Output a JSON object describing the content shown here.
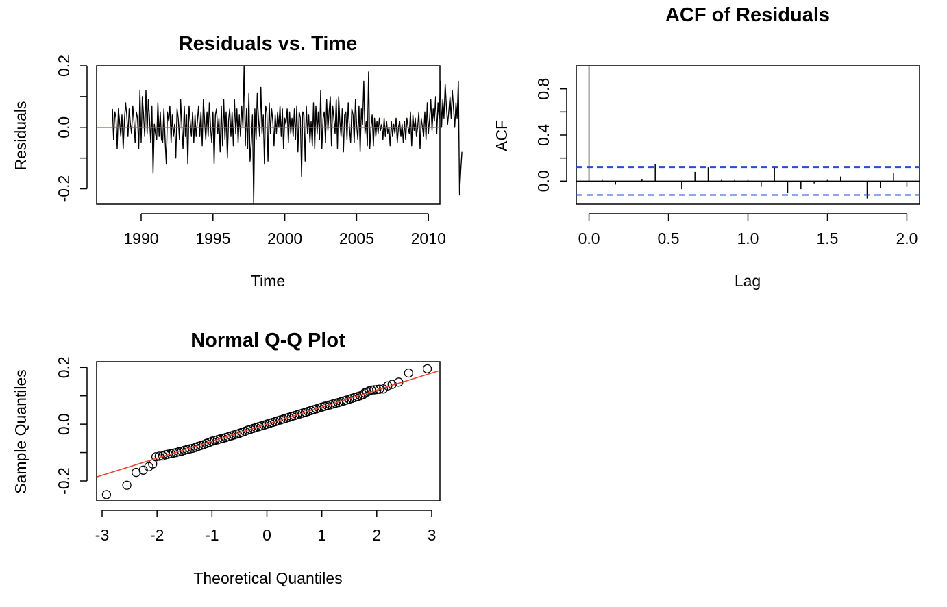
{
  "chart_data": [
    {
      "type": "line",
      "title": "Residuals vs. Time",
      "xlabel": "Time",
      "ylabel": "Residuals",
      "xlim": [
        1986.9,
        2010.8
      ],
      "ylim": [
        -0.25,
        0.2
      ],
      "xticks": [
        {
          "value": 1990,
          "label": "1990"
        },
        {
          "value": 1995,
          "label": "1995"
        },
        {
          "value": 2000,
          "label": "2000"
        },
        {
          "value": 2005,
          "label": "2005"
        },
        {
          "value": 2010,
          "label": "2010"
        }
      ],
      "yticks": [
        {
          "value": -0.2,
          "label": "-0.2"
        },
        {
          "value": -0.1,
          "label": ""
        },
        {
          "value": 0.0,
          "label": "0.0"
        },
        {
          "value": 0.1,
          "label": ""
        },
        {
          "value": 0.2,
          "label": "0.2"
        }
      ],
      "reference_line": {
        "y": 0,
        "color": "#e8432d"
      },
      "line_color": "#000000",
      "series": [
        {
          "x_start": 1988.0,
          "x_step": 0.08333,
          "values": [
            0.06,
            -0.04,
            0.05,
            0.03,
            -0.07,
            0.06,
            0.02,
            -0.03,
            0.04,
            -0.07,
            0.02,
            0.08,
            0.04,
            -0.03,
            0.06,
            0.01,
            -0.02,
            0.07,
            0.02,
            -0.05,
            0.05,
            0.03,
            -0.07,
            0.12,
            -0.05,
            0.1,
            0.04,
            -0.03,
            0.12,
            -0.02,
            0.09,
            0.03,
            -0.05,
            0.07,
            -0.15,
            0.01,
            -0.02,
            -0.04,
            0.08,
            -0.03,
            0.05,
            -0.04,
            -0.05,
            0.06,
            -0.04,
            -0.12,
            0.05,
            0.02,
            0.07,
            -0.05,
            0.04,
            -0.03,
            0.01,
            -0.1,
            0.06,
            0.03,
            -0.04,
            0.09,
            0.0,
            -0.07,
            0.07,
            -0.03,
            0.04,
            -0.12,
            0.07,
            0.02,
            -0.03,
            0.05,
            -0.05,
            0.04,
            -0.03,
            0.02,
            0.07,
            -0.03,
            0.05,
            -0.06,
            0.09,
            0.02,
            -0.04,
            0.05,
            -0.03,
            0.08,
            0.0,
            -0.05,
            0.05,
            -0.12,
            0.04,
            0.06,
            -0.02,
            0.03,
            -0.08,
            0.07,
            -0.06,
            0.09,
            -0.04,
            0.05,
            -0.1,
            0.02,
            0.06,
            -0.03,
            0.05,
            -0.06,
            0.09,
            -0.02,
            0.06,
            -0.05,
            0.04,
            -0.03,
            0.07,
            0.0,
            0.2,
            -0.06,
            0.06,
            -0.07,
            0.11,
            -0.11,
            -0.05,
            0.04,
            -0.25,
            0.06,
            -0.04,
            0.11,
            0.03,
            -0.03,
            0.13,
            -0.02,
            0.04,
            -0.12,
            0.07,
            0.05,
            -0.11,
            0.08,
            -0.02,
            0.06,
            0.02,
            -0.06,
            0.04,
            -0.02,
            0.05,
            0.0,
            0.07,
            -0.03,
            0.06,
            -0.07,
            0.03,
            0.01,
            0.06,
            -0.05,
            0.05,
            -0.02,
            0.03,
            -0.03,
            0.06,
            -0.04,
            0.07,
            -0.08,
            0.05,
            0.03,
            -0.16,
            0.05,
            0.04,
            -0.11,
            0.07,
            -0.02,
            0.04,
            -0.05,
            0.02,
            -0.06,
            0.08,
            -0.07,
            0.07,
            -0.02,
            0.05,
            -0.04,
            0.12,
            -0.07,
            0.03,
            0.05,
            -0.05,
            0.09,
            -0.01,
            0.05,
            0.1,
            -0.06,
            0.07,
            0.03,
            -0.02,
            0.09,
            -0.07,
            0.1,
            0.02,
            -0.03,
            0.06,
            -0.08,
            0.04,
            0.05,
            -0.04,
            0.08,
            0.0,
            -0.05,
            0.06,
            0.04,
            -0.05,
            0.09,
            0.01,
            -0.04,
            0.07,
            -0.08,
            0.06,
            0.01,
            0.15,
            -0.02,
            0.02,
            -0.06,
            0.18,
            -0.07,
            0.0,
            0.04,
            -0.06,
            0.03,
            -0.03,
            0.02,
            -0.02,
            0.03,
            -0.01,
            0.01,
            -0.04,
            0.03,
            -0.03,
            0.02,
            -0.02,
            0.0,
            -0.06,
            0.02,
            -0.03,
            0.01,
            -0.02,
            0.03,
            -0.05,
            0.0,
            0.02,
            -0.03,
            0.01,
            -0.05,
            0.02,
            -0.04,
            0.03,
            0.0,
            -0.02,
            0.05,
            -0.06,
            0.04,
            -0.01,
            0.03,
            -0.03,
            0.0,
            0.05,
            -0.07,
            0.03,
            0.0,
            -0.03,
            0.05,
            -0.04,
            0.08,
            -0.02,
            0.03,
            0.09,
            -0.01,
            0.06,
            0.02,
            0.1,
            -0.02,
            0.08,
            0.03,
            0.15,
            0.0,
            0.09,
            0.03,
            0.14,
            0.07,
            0.01,
            0.05,
            0.1,
            0.03,
            0.12,
            0.06,
            0.0,
            0.08,
            0.03,
            0.15,
            -0.22,
            -0.14,
            -0.08
          ]
        }
      ]
    },
    {
      "type": "bar",
      "title": "ACF of Residuals",
      "xlabel": "Lag",
      "ylabel": "ACF",
      "xlim": [
        -0.08,
        2.08
      ],
      "ylim": [
        -0.2,
        1.0
      ],
      "xticks": [
        {
          "value": 0.0,
          "label": "0.0"
        },
        {
          "value": 0.5,
          "label": "0.5"
        },
        {
          "value": 1.0,
          "label": "1.0"
        },
        {
          "value": 1.5,
          "label": "1.5"
        },
        {
          "value": 2.0,
          "label": "2.0"
        }
      ],
      "yticks": [
        {
          "value": 0.0,
          "label": "0.0"
        },
        {
          "value": 0.2,
          "label": ""
        },
        {
          "value": 0.4,
          "label": "0.4"
        },
        {
          "value": 0.6,
          "label": ""
        },
        {
          "value": 0.8,
          "label": "0.8"
        }
      ],
      "confidence_bound": 0.12,
      "bound_color": "#1f4fd8",
      "lags": [
        0.0,
        0.0833,
        0.1667,
        0.25,
        0.3333,
        0.4167,
        0.5,
        0.5833,
        0.6667,
        0.75,
        0.8333,
        0.9167,
        1.0,
        1.0833,
        1.1667,
        1.25,
        1.3333,
        1.4167,
        1.5,
        1.5833,
        1.6667,
        1.75,
        1.8333,
        1.9167,
        2.0
      ],
      "values": [
        1.0,
        0.01,
        -0.03,
        -0.01,
        0.02,
        0.15,
        -0.01,
        -0.07,
        0.08,
        0.12,
        0.01,
        0.01,
        0.01,
        -0.05,
        0.13,
        -0.1,
        -0.07,
        -0.02,
        0.01,
        0.04,
        -0.01,
        -0.15,
        -0.06,
        0.07,
        -0.05
      ]
    },
    {
      "type": "scatter",
      "title": "Normal Q-Q Plot",
      "xlabel": "Theoretical Quantiles",
      "ylabel": "Sample Quantiles",
      "xlim": [
        -3.1,
        3.15
      ],
      "ylim": [
        -0.27,
        0.22
      ],
      "xticks": [
        {
          "value": -3,
          "label": "-3"
        },
        {
          "value": -2,
          "label": "-2"
        },
        {
          "value": -1,
          "label": "-1"
        },
        {
          "value": 0,
          "label": "0"
        },
        {
          "value": 1,
          "label": "1"
        },
        {
          "value": 2,
          "label": "2"
        },
        {
          "value": 3,
          "label": "3"
        }
      ],
      "yticks": [
        {
          "value": -0.2,
          "label": "-0.2"
        },
        {
          "value": -0.1,
          "label": ""
        },
        {
          "value": 0.0,
          "label": "0.0"
        },
        {
          "value": 0.1,
          "label": ""
        },
        {
          "value": 0.2,
          "label": "0.2"
        }
      ],
      "reference_line": {
        "intercept": 0.0,
        "slope": 0.06,
        "color": "#e8432d"
      },
      "points": [
        [
          -2.92,
          -0.248
        ],
        [
          -2.55,
          -0.215
        ],
        [
          -2.38,
          -0.17
        ],
        [
          -2.25,
          -0.162
        ],
        [
          -2.15,
          -0.15
        ],
        [
          -2.08,
          -0.14
        ],
        [
          -2.02,
          -0.115
        ],
        [
          -1.96,
          -0.113
        ],
        [
          -1.9,
          -0.112
        ],
        [
          -1.85,
          -0.108
        ],
        [
          -1.8,
          -0.106
        ],
        [
          -1.75,
          -0.104
        ],
        [
          -1.7,
          -0.102
        ],
        [
          -1.65,
          -0.1
        ],
        [
          -1.6,
          -0.097
        ],
        [
          -1.55,
          -0.095
        ],
        [
          -1.5,
          -0.092
        ],
        [
          -1.45,
          -0.089
        ],
        [
          -1.4,
          -0.087
        ],
        [
          -1.35,
          -0.085
        ],
        [
          -1.3,
          -0.082
        ],
        [
          -1.25,
          -0.078
        ],
        [
          -1.2,
          -0.075
        ],
        [
          -1.15,
          -0.072
        ],
        [
          -1.1,
          -0.068
        ],
        [
          -1.05,
          -0.064
        ],
        [
          -1.0,
          -0.06
        ],
        [
          -0.95,
          -0.057
        ],
        [
          -0.9,
          -0.055
        ],
        [
          -0.85,
          -0.052
        ],
        [
          -0.8,
          -0.05
        ],
        [
          -0.75,
          -0.047
        ],
        [
          -0.7,
          -0.044
        ],
        [
          -0.65,
          -0.041
        ],
        [
          -0.6,
          -0.038
        ],
        [
          -0.55,
          -0.035
        ],
        [
          -0.5,
          -0.032
        ],
        [
          -0.45,
          -0.028
        ],
        [
          -0.4,
          -0.025
        ],
        [
          -0.35,
          -0.021
        ],
        [
          -0.3,
          -0.018
        ],
        [
          -0.25,
          -0.015
        ],
        [
          -0.2,
          -0.012
        ],
        [
          -0.15,
          -0.009
        ],
        [
          -0.1,
          -0.006
        ],
        [
          -0.05,
          -0.003
        ],
        [
          0.0,
          0.0
        ],
        [
          0.05,
          0.003
        ],
        [
          0.1,
          0.006
        ],
        [
          0.15,
          0.009
        ],
        [
          0.2,
          0.012
        ],
        [
          0.25,
          0.015
        ],
        [
          0.3,
          0.018
        ],
        [
          0.35,
          0.021
        ],
        [
          0.4,
          0.024
        ],
        [
          0.45,
          0.027
        ],
        [
          0.5,
          0.03
        ],
        [
          0.55,
          0.033
        ],
        [
          0.6,
          0.036
        ],
        [
          0.65,
          0.039
        ],
        [
          0.7,
          0.042
        ],
        [
          0.75,
          0.045
        ],
        [
          0.8,
          0.048
        ],
        [
          0.85,
          0.051
        ],
        [
          0.9,
          0.054
        ],
        [
          0.95,
          0.057
        ],
        [
          1.0,
          0.06
        ],
        [
          1.05,
          0.063
        ],
        [
          1.1,
          0.066
        ],
        [
          1.15,
          0.068
        ],
        [
          1.2,
          0.071
        ],
        [
          1.25,
          0.074
        ],
        [
          1.3,
          0.076
        ],
        [
          1.35,
          0.079
        ],
        [
          1.4,
          0.082
        ],
        [
          1.45,
          0.085
        ],
        [
          1.5,
          0.088
        ],
        [
          1.55,
          0.091
        ],
        [
          1.6,
          0.094
        ],
        [
          1.65,
          0.097
        ],
        [
          1.7,
          0.1
        ],
        [
          1.75,
          0.104
        ],
        [
          1.78,
          0.11
        ],
        [
          1.82,
          0.113
        ],
        [
          1.86,
          0.117
        ],
        [
          1.9,
          0.12
        ],
        [
          1.95,
          0.121
        ],
        [
          2.0,
          0.122
        ],
        [
          2.05,
          0.123
        ],
        [
          2.12,
          0.124
        ],
        [
          2.2,
          0.135
        ],
        [
          2.28,
          0.14
        ],
        [
          2.4,
          0.148
        ],
        [
          2.58,
          0.18
        ],
        [
          2.92,
          0.195
        ]
      ]
    }
  ]
}
